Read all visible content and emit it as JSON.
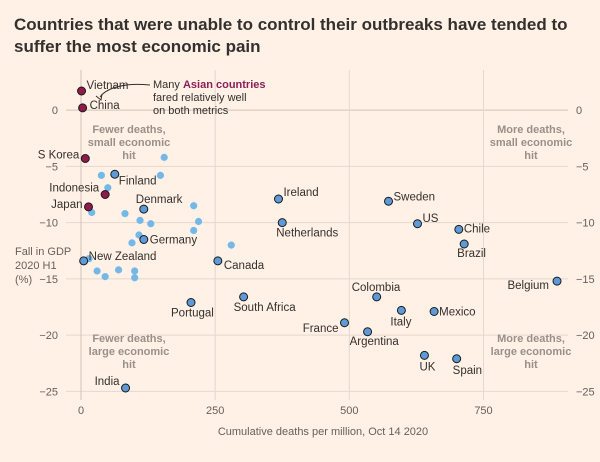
{
  "title": "Countries that were unable to control their outbreaks have tended to suffer the most economic pain",
  "colors": {
    "background": "#fff1e5",
    "highlight": "#8e1b4b",
    "labelled": "#5d9ad7",
    "unlabelled": "#74b8e8",
    "grid": "#e3d9cf"
  },
  "annotation": {
    "line1": "Many",
    "highlight": "Asian countries",
    "line2": "fared relatively well",
    "line3": "on both metrics"
  },
  "quadrants": {
    "top_left": [
      "Fewer deaths,",
      "small economic",
      "hit"
    ],
    "top_right": [
      "More deaths,",
      "small economic",
      "hit"
    ],
    "bottom_left": [
      "Fewer deaths,",
      "large economic",
      "hit"
    ],
    "bottom_right": [
      "More deaths,",
      "large economic",
      "hit"
    ]
  },
  "chart_data": {
    "type": "scatter",
    "title": "Countries that were unable to control their outbreaks have tended to suffer the most economic pain",
    "xlabel": "Cumulative deaths per million, Oct 14 2020",
    "ylabel": [
      "Fall in GDP",
      "2020 H1",
      "(%)"
    ],
    "xlim": [
      0,
      900
    ],
    "ylim": [
      -25.5,
      2.5
    ],
    "xticks": [
      0,
      250,
      500,
      750
    ],
    "yticks": [
      0,
      -5,
      -10,
      -15,
      -20,
      -25
    ],
    "grid": true,
    "points": [
      {
        "label": "Vietnam",
        "x": 1,
        "y": 1.7,
        "group": "asian"
      },
      {
        "label": "China",
        "x": 3,
        "y": 0.2,
        "group": "asian"
      },
      {
        "label": "S Korea",
        "x": 8,
        "y": -4.3,
        "group": "asian"
      },
      {
        "label": "Indonesia",
        "x": 45,
        "y": -7.5,
        "group": "asian"
      },
      {
        "label": "Japan",
        "x": 14,
        "y": -8.6,
        "group": "asian"
      },
      {
        "label": "Finland",
        "x": 63,
        "y": -5.7,
        "group": "labelled"
      },
      {
        "label": "Denmark",
        "x": 117,
        "y": -8.8,
        "group": "labelled"
      },
      {
        "label": "Germany",
        "x": 117,
        "y": -11.5,
        "group": "labelled"
      },
      {
        "label": "New Zealand",
        "x": 5,
        "y": -13.4,
        "group": "labelled"
      },
      {
        "label": "Canada",
        "x": 255,
        "y": -13.4,
        "group": "labelled"
      },
      {
        "label": "Portugal",
        "x": 205,
        "y": -17.1,
        "group": "labelled"
      },
      {
        "label": "South Africa",
        "x": 303,
        "y": -16.6,
        "group": "labelled"
      },
      {
        "label": "Ireland",
        "x": 368,
        "y": -7.9,
        "group": "labelled"
      },
      {
        "label": "Netherlands",
        "x": 375,
        "y": -10.0,
        "group": "labelled"
      },
      {
        "label": "Sweden",
        "x": 573,
        "y": -8.1,
        "group": "labelled"
      },
      {
        "label": "US",
        "x": 627,
        "y": -10.1,
        "group": "labelled"
      },
      {
        "label": "Chile",
        "x": 704,
        "y": -10.6,
        "group": "labelled"
      },
      {
        "label": "Brazil",
        "x": 714,
        "y": -11.9,
        "group": "labelled"
      },
      {
        "label": "Colombia",
        "x": 551,
        "y": -16.6,
        "group": "labelled"
      },
      {
        "label": "Italy",
        "x": 597,
        "y": -17.8,
        "group": "labelled"
      },
      {
        "label": "Mexico",
        "x": 658,
        "y": -17.9,
        "group": "labelled"
      },
      {
        "label": "Belgium",
        "x": 887,
        "y": -15.2,
        "group": "labelled"
      },
      {
        "label": "France",
        "x": 491,
        "y": -18.9,
        "group": "labelled"
      },
      {
        "label": "Argentina",
        "x": 534,
        "y": -19.7,
        "group": "labelled"
      },
      {
        "label": "UK",
        "x": 640,
        "y": -21.8,
        "group": "labelled"
      },
      {
        "label": "Spain",
        "x": 700,
        "y": -22.1,
        "group": "labelled"
      },
      {
        "label": "India",
        "x": 83,
        "y": -24.7,
        "group": "labelled"
      },
      {
        "label": "",
        "x": 38,
        "y": -5.8,
        "group": "other"
      },
      {
        "label": "",
        "x": 50,
        "y": -6.9,
        "group": "other"
      },
      {
        "label": "",
        "x": 155,
        "y": -4.2,
        "group": "other"
      },
      {
        "label": "",
        "x": 148,
        "y": -5.8,
        "group": "other"
      },
      {
        "label": "",
        "x": 20,
        "y": -9.1,
        "group": "other"
      },
      {
        "label": "",
        "x": 82,
        "y": -9.2,
        "group": "other"
      },
      {
        "label": "",
        "x": 110,
        "y": -9.8,
        "group": "other"
      },
      {
        "label": "",
        "x": 210,
        "y": -8.5,
        "group": "other"
      },
      {
        "label": "",
        "x": 219,
        "y": -9.9,
        "group": "other"
      },
      {
        "label": "",
        "x": 130,
        "y": -10.1,
        "group": "other"
      },
      {
        "label": "",
        "x": 108,
        "y": -11.1,
        "group": "other"
      },
      {
        "label": "",
        "x": 95,
        "y": -11.8,
        "group": "other"
      },
      {
        "label": "",
        "x": 210,
        "y": -10.7,
        "group": "other"
      },
      {
        "label": "",
        "x": 280,
        "y": -12.0,
        "group": "other"
      },
      {
        "label": "",
        "x": 15,
        "y": -13.2,
        "group": "other"
      },
      {
        "label": "",
        "x": 30,
        "y": -14.3,
        "group": "other"
      },
      {
        "label": "",
        "x": 45,
        "y": -14.8,
        "group": "other"
      },
      {
        "label": "",
        "x": 70,
        "y": -14.2,
        "group": "other"
      },
      {
        "label": "",
        "x": 100,
        "y": -14.3,
        "group": "other"
      },
      {
        "label": "",
        "x": 100,
        "y": -14.9,
        "group": "other"
      }
    ]
  }
}
